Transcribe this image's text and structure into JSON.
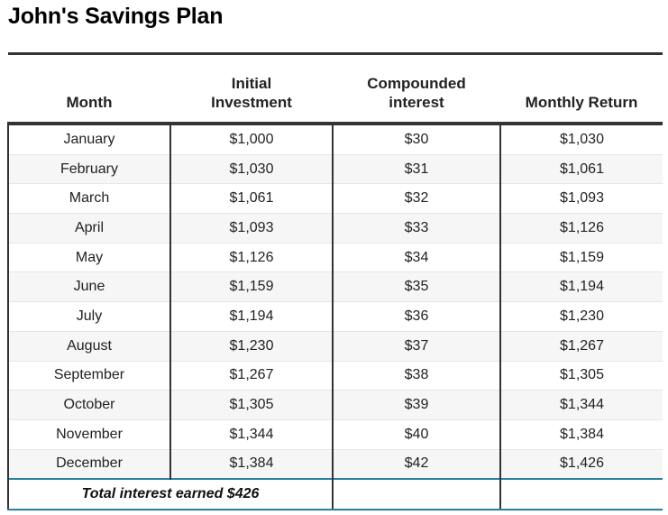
{
  "title": "John's Savings Plan",
  "table": {
    "headers": [
      "Month",
      "Initial Investment",
      "Compounded interest",
      "Monthly Return"
    ],
    "rows": [
      [
        "January",
        "$1,000",
        "$30",
        "$1,030"
      ],
      [
        "February",
        "$1,030",
        "$31",
        "$1,061"
      ],
      [
        "March",
        "$1,061",
        "$32",
        "$1,093"
      ],
      [
        "April",
        "$1,093",
        "$33",
        "$1,126"
      ],
      [
        "May",
        "$1,126",
        "$34",
        "$1,159"
      ],
      [
        "June",
        "$1,159",
        "$35",
        "$1,194"
      ],
      [
        "July",
        "$1,194",
        "$36",
        "$1,230"
      ],
      [
        "August",
        "$1,230",
        "$37",
        "$1,267"
      ],
      [
        "September",
        "$1,267",
        "$38",
        "$1,305"
      ],
      [
        "October",
        "$1,305",
        "$39",
        "$1,344"
      ],
      [
        "November",
        "$1,344",
        "$40",
        "$1,384"
      ],
      [
        "December",
        "$1,384",
        "$42",
        "$1,426"
      ]
    ],
    "footer": "Total interest earned $426"
  },
  "colors": {
    "header_rule": "#333333",
    "footer_rule": "#2a7fa5",
    "stripe": "#f6f6f6"
  }
}
